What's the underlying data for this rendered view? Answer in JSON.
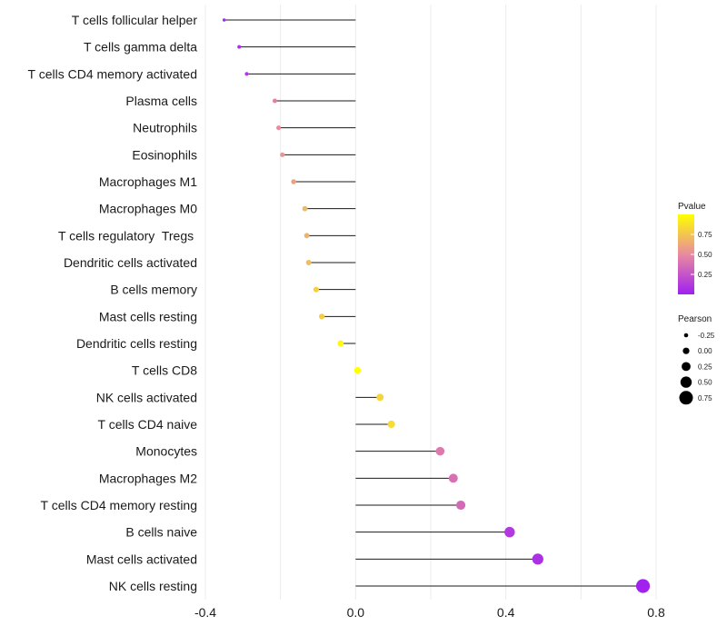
{
  "chart_data": {
    "type": "lollipop",
    "title": "",
    "xlabel": "",
    "ylabel": "",
    "xlim": [
      -0.4,
      0.8
    ],
    "xticks": [
      -0.4,
      0.0,
      0.4,
      0.8
    ],
    "xtick_labels": [
      "-0.4",
      "0.0",
      "0.4",
      "0.8"
    ],
    "grid": true,
    "categories": [
      "T cells follicular helper",
      "T cells gamma delta",
      "T cells CD4 memory activated",
      "Plasma cells",
      "Neutrophils",
      "Eosinophils",
      "Macrophages M1",
      "Macrophages M0",
      "T cells regulatory  Tregs ",
      "Dendritic cells activated",
      "B cells memory",
      "Mast cells resting",
      "Dendritic cells resting",
      "T cells CD8",
      "NK cells activated",
      "T cells CD4 naive",
      "Monocytes",
      "Macrophages M2",
      "T cells CD4 memory resting",
      "B cells naive",
      "Mast cells activated",
      "NK cells resting"
    ],
    "values": [
      -0.35,
      -0.31,
      -0.29,
      -0.215,
      -0.205,
      -0.195,
      -0.165,
      -0.135,
      -0.13,
      -0.125,
      -0.105,
      -0.09,
      -0.04,
      0.005,
      0.065,
      0.095,
      0.225,
      0.26,
      0.28,
      0.41,
      0.485,
      0.765
    ],
    "pvalues": [
      0.05,
      0.08,
      0.12,
      0.45,
      0.5,
      0.55,
      0.6,
      0.7,
      0.68,
      0.72,
      0.8,
      0.78,
      0.97,
      1.0,
      0.82,
      0.85,
      0.42,
      0.38,
      0.35,
      0.12,
      0.08,
      0.005
    ],
    "legend": {
      "color_title": "Pvalue",
      "color_ticks": [
        "0.75",
        "0.50",
        "0.25"
      ],
      "color_low": "#a020f0",
      "color_high": "#ffff00",
      "size_title": "Pearson",
      "size_ticks": [
        "-0.25",
        "0.00",
        "0.25",
        "0.50",
        "0.75"
      ],
      "size_values": [
        -0.25,
        0.0,
        0.25,
        0.5,
        0.75
      ]
    },
    "placement": "right"
  }
}
